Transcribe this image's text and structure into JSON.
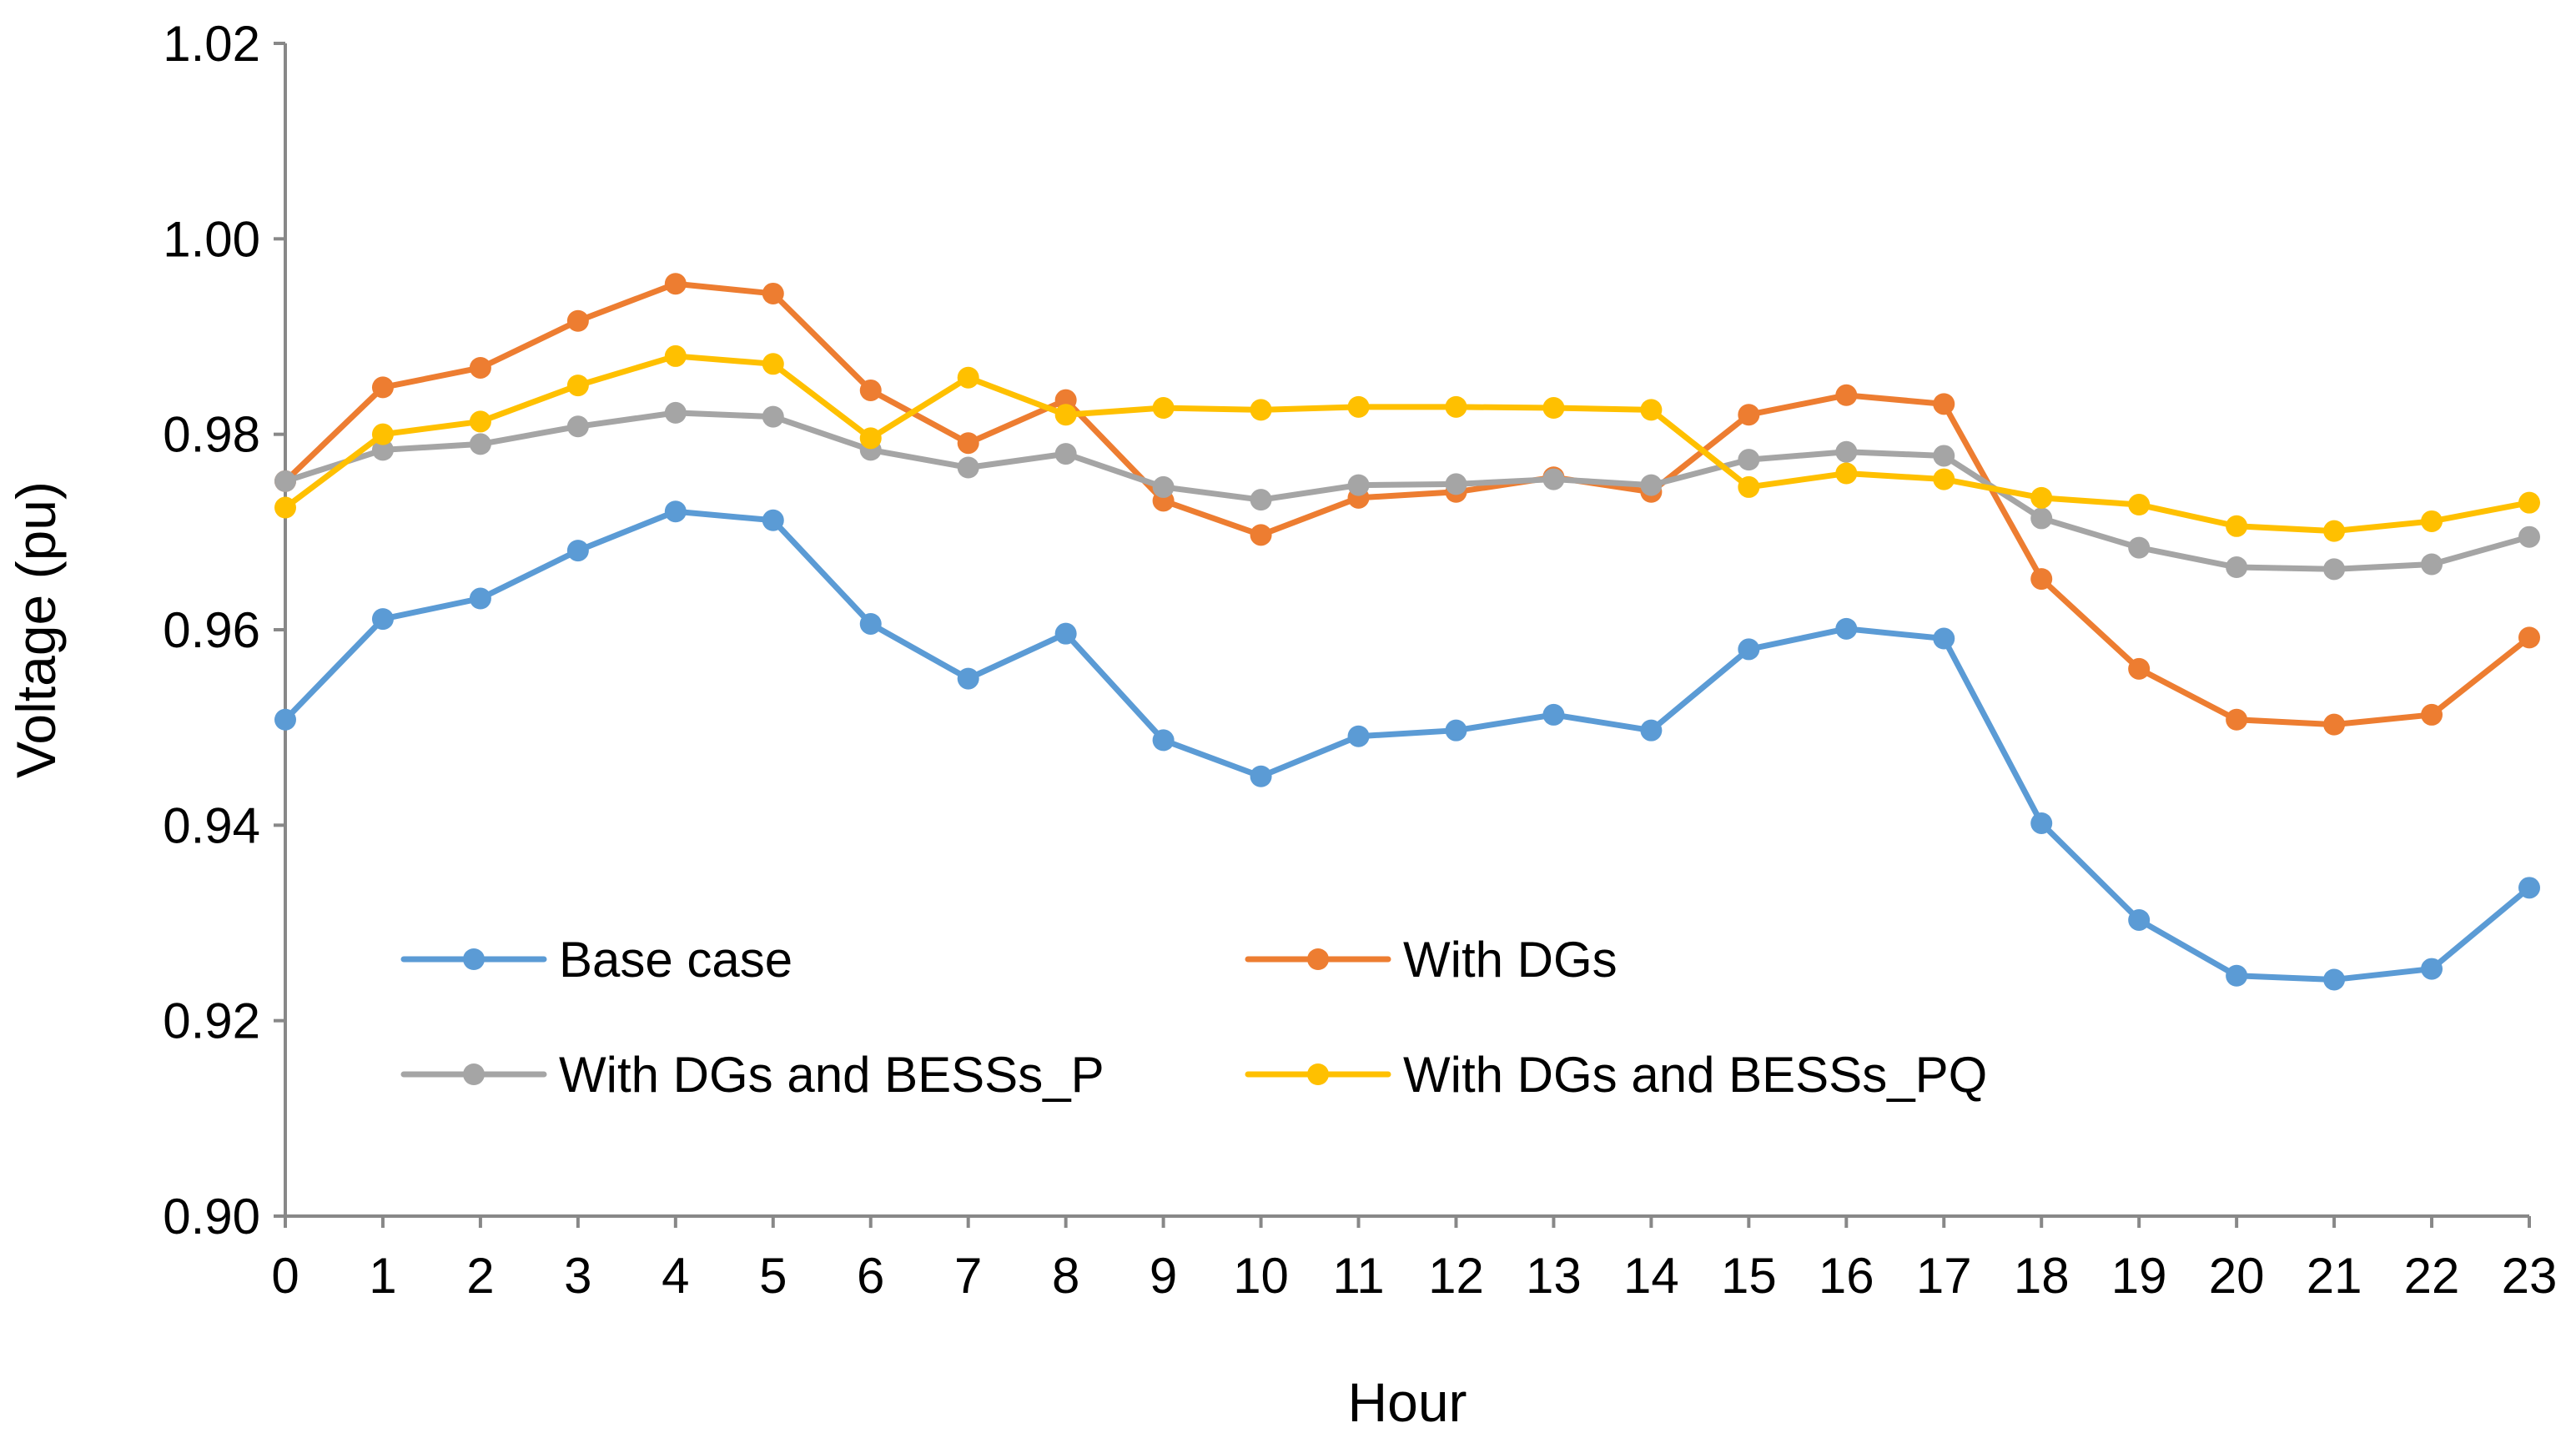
{
  "chart_data": {
    "type": "line",
    "title": "",
    "xlabel": "Hour",
    "ylabel": "Voltage (pu)",
    "x": [
      0,
      1,
      2,
      3,
      4,
      5,
      6,
      7,
      8,
      9,
      10,
      11,
      12,
      13,
      14,
      15,
      16,
      17,
      18,
      19,
      20,
      21,
      22,
      23
    ],
    "x_tick_labels": [
      "0",
      "1",
      "2",
      "3",
      "4",
      "5",
      "6",
      "7",
      "8",
      "9",
      "10",
      "11",
      "12",
      "13",
      "14",
      "15",
      "16",
      "17",
      "18",
      "19",
      "20",
      "21",
      "22",
      "23"
    ],
    "ylim": [
      0.9,
      1.02
    ],
    "y_ticks": [
      0.9,
      0.92,
      0.94,
      0.96,
      0.98,
      1.0,
      1.02
    ],
    "y_tick_labels": [
      "0.90",
      "0.92",
      "0.94",
      "0.96",
      "0.98",
      "1.00",
      "1.02"
    ],
    "grid": false,
    "legend_position": "lower-left inside plot, two columns",
    "series": [
      {
        "name": "Base case",
        "color": "#5B9BD5",
        "values": [
          0.9508,
          0.9611,
          0.9632,
          0.9681,
          0.9721,
          0.9712,
          0.9606,
          0.955,
          0.9596,
          0.9487,
          0.945,
          0.9491,
          0.9497,
          0.9513,
          0.9497,
          0.958,
          0.9601,
          0.9591,
          0.9402,
          0.9303,
          0.9246,
          0.9242,
          0.9253,
          0.9336
        ]
      },
      {
        "name": "With DGs",
        "color": "#ED7D31",
        "values": [
          0.9752,
          0.9848,
          0.9868,
          0.9916,
          0.9954,
          0.9944,
          0.9845,
          0.9791,
          0.9835,
          0.9732,
          0.9697,
          0.9735,
          0.9741,
          0.9756,
          0.9741,
          0.982,
          0.984,
          0.9831,
          0.9652,
          0.956,
          0.9508,
          0.9503,
          0.9513,
          0.9592
        ]
      },
      {
        "name": "With DGs and BESSs_P",
        "color": "#A5A5A5",
        "values": [
          0.9752,
          0.9784,
          0.979,
          0.9808,
          0.9822,
          0.9818,
          0.9784,
          0.9766,
          0.978,
          0.9746,
          0.9733,
          0.9748,
          0.9749,
          0.9754,
          0.9748,
          0.9774,
          0.9782,
          0.9778,
          0.9714,
          0.9684,
          0.9664,
          0.9662,
          0.9667,
          0.9695
        ]
      },
      {
        "name": "With DGs and BESSs_PQ",
        "color": "#FFC000",
        "values": [
          0.9725,
          0.98,
          0.9813,
          0.985,
          0.988,
          0.9872,
          0.9796,
          0.9858,
          0.982,
          0.9827,
          0.9825,
          0.9828,
          0.9828,
          0.9827,
          0.9825,
          0.9746,
          0.976,
          0.9754,
          0.9735,
          0.9728,
          0.9706,
          0.9701,
          0.9711,
          0.973
        ]
      }
    ]
  }
}
